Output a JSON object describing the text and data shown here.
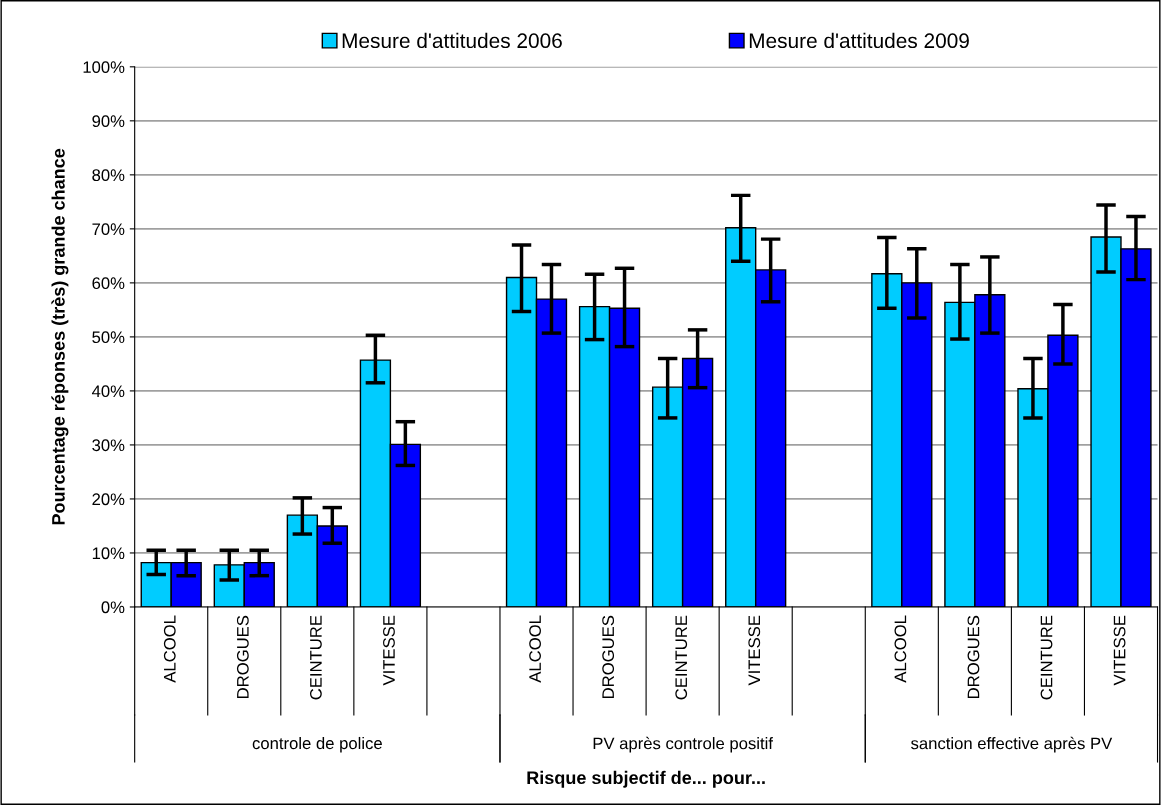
{
  "chart_data": {
    "type": "bar",
    "xlabel": "Risque subjectif de... pour...",
    "ylabel": "Pourcentage réponses (très) grande chance",
    "categories": [
      "ALCOOL",
      "DROGUES",
      "CEINTURE",
      "VITESSE",
      null,
      "ALCOOL",
      "DROGUES",
      "CEINTURE",
      "VITESSE",
      null,
      "ALCOOL",
      "DROGUES",
      "CEINTURE",
      "VITESSE"
    ],
    "series": [
      {
        "name": "Mesure d'attitudes 2006",
        "color": "#00ccff",
        "values": [
          8.2,
          7.8,
          17,
          45.7,
          null,
          61,
          55.6,
          40.7,
          70.2,
          null,
          61.7,
          56.4,
          40.4,
          68.5
        ],
        "errors": [
          [
            6,
            10.5
          ],
          [
            5,
            10.5
          ],
          [
            13.5,
            20.2
          ],
          [
            41.5,
            50.3
          ],
          null,
          [
            54.7,
            67
          ],
          [
            49.5,
            61.6
          ],
          [
            35,
            46
          ],
          [
            64,
            76.2
          ],
          null,
          [
            55.3,
            68.4
          ],
          [
            49.6,
            63.4
          ],
          [
            35,
            46
          ],
          [
            62,
            74.4
          ]
        ]
      },
      {
        "name": "Mesure d'attitudes 2009",
        "color": "#0000ff",
        "values": [
          8.2,
          8.2,
          15,
          30.1,
          null,
          57,
          55.3,
          46,
          62.4,
          null,
          60,
          57.8,
          50.3,
          66.3
        ],
        "errors": [
          [
            5.8,
            10.5
          ],
          [
            5.8,
            10.5
          ],
          [
            11.8,
            18.4
          ],
          [
            26.2,
            34.3
          ],
          null,
          [
            50.7,
            63.4
          ],
          [
            48.2,
            62.7
          ],
          [
            40.6,
            51.3
          ],
          [
            56.5,
            68.1
          ],
          null,
          [
            53.5,
            66.3
          ],
          [
            50.7,
            64.8
          ],
          [
            45,
            56
          ],
          [
            60.6,
            72.3
          ]
        ]
      }
    ],
    "ylim": [
      0,
      100
    ],
    "yticks": [
      {
        "value": 0,
        "label": "0%"
      },
      {
        "value": 10,
        "label": "10%"
      },
      {
        "value": 20,
        "label": "20%"
      },
      {
        "value": 30,
        "label": "30%"
      },
      {
        "value": 40,
        "label": "40%"
      },
      {
        "value": 50,
        "label": "50%"
      },
      {
        "value": 60,
        "label": "60%"
      },
      {
        "value": 70,
        "label": "70%"
      },
      {
        "value": 80,
        "label": "80%"
      },
      {
        "value": 90,
        "label": "90%"
      },
      {
        "value": 100,
        "label": "100%"
      }
    ],
    "grid": "y",
    "legend": "top",
    "annotations": [
      "controle de police",
      "PV après controle positif",
      "sanction effective après PV"
    ]
  }
}
